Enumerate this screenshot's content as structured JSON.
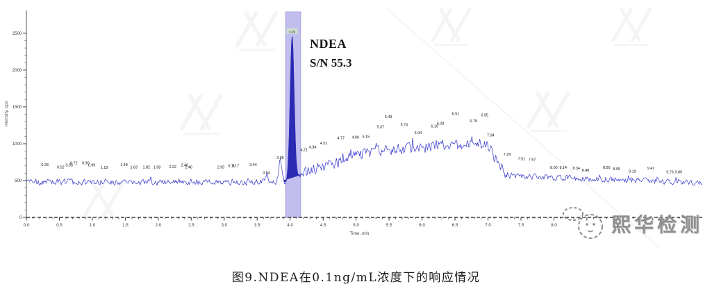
{
  "figure": {
    "caption": "图9.NDEA在0.1ng/mL浓度下的响应情况"
  },
  "annotation": {
    "analyte": "NDEA",
    "sn": "S/N 55.3"
  },
  "watermark": {
    "brand_text": "熙华检测"
  },
  "chart_data": {
    "type": "line",
    "subtype": "chromatogram",
    "title": "",
    "xlabel": "Time, min",
    "ylabel": "Intensity, cps",
    "xlim": [
      0,
      10.25
    ],
    "ylim": [
      0,
      2810
    ],
    "grid": false,
    "x_major_tick_step": 0.5,
    "x_minor_tick_step": 0.1,
    "x_label_visible_max": 8.0,
    "y_major_ticks": [
      0,
      500,
      1000,
      1500,
      2000,
      2500
    ],
    "y_minor_tick_step": 100,
    "trace_color": "#3a3ccd",
    "peak_fill_color": "#2a2ab2",
    "selection_band_color": "#b7b3ea",
    "selection_band_border": "#938ed6",
    "analyte": "NDEA",
    "signal_to_noise": 55.3,
    "main_peak": {
      "rt_min": 4.03,
      "apex_label": "4.03",
      "apex_intensity": 2430,
      "selection_band_min": [
        3.93,
        4.16
      ]
    },
    "baseline_intensity": 480,
    "matrix_hump": {
      "rise_start_min": 4.0,
      "plateau_start_min": 5.3,
      "plateau_end_min": 6.9,
      "max_intensity": 1010,
      "fall_end_min": 7.35,
      "tail_end_intensity": 470
    },
    "noise": {
      "baseline_amp": 48,
      "hump_amp": 88,
      "tail_amp": 46,
      "seed": 77
    },
    "peak_labels": [
      [
        "0.28",
        700
      ],
      [
        "0.52",
        665
      ],
      [
        "0.65",
        695
      ],
      [
        "0.72",
        720
      ],
      [
        "0.90",
        720
      ],
      [
        "0.99",
        695
      ],
      [
        "1.18",
        660
      ],
      [
        "1.48",
        700
      ],
      [
        "1.63",
        665
      ],
      [
        "1.82",
        665
      ],
      [
        "1.98",
        665
      ],
      [
        "2.22",
        670
      ],
      [
        "2.40",
        695
      ],
      [
        "2.46",
        665
      ],
      [
        "2.95",
        665
      ],
      [
        "3.11",
        685
      ],
      [
        "3.17",
        685
      ],
      [
        "3.44",
        700
      ],
      [
        "3.64",
        590
      ],
      [
        "3.85",
        790
      ],
      [
        "4.21",
        900
      ],
      [
        "4.34",
        940
      ],
      [
        "4.51",
        990
      ],
      [
        "4.77",
        1060
      ],
      [
        "4.99",
        1070
      ],
      [
        "5.15",
        1080
      ],
      [
        "5.37",
        1210
      ],
      [
        "5.49",
        1350
      ],
      [
        "5.73",
        1240
      ],
      [
        "5.94",
        1130
      ],
      [
        "6.19",
        1220
      ],
      [
        "6.28",
        1260
      ],
      [
        "6.51",
        1390
      ],
      [
        "6.78",
        1290
      ],
      [
        "6.95",
        1370
      ],
      [
        "7.04",
        1100
      ],
      [
        "7.29",
        840
      ],
      [
        "7.51",
        780
      ],
      [
        "7.67",
        770
      ],
      [
        "8.00",
        660
      ],
      [
        "8.14",
        660
      ],
      [
        "8.34",
        650
      ],
      [
        "8.48",
        620
      ],
      [
        "8.80",
        660
      ],
      [
        "8.95",
        640
      ],
      [
        "9.19",
        610
      ],
      [
        "9.47",
        650
      ],
      [
        "9.76",
        600
      ],
      [
        "9.89",
        600
      ]
    ]
  }
}
